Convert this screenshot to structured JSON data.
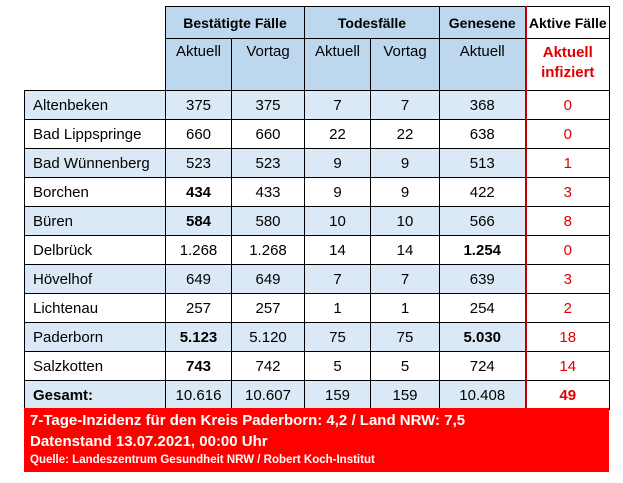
{
  "header": {
    "groups": [
      "Bestätigte Fälle",
      "Todesfälle",
      "Genesene",
      "Aktive Fälle"
    ],
    "sub": [
      "Aktuell",
      "Vortag",
      "Aktuell",
      "Vortag",
      "Aktuell",
      "Aktuell infiziert"
    ]
  },
  "rows": [
    {
      "name": "Altenbeken",
      "v": [
        "375",
        "375",
        "7",
        "7",
        "368",
        "0"
      ]
    },
    {
      "name": "Bad Lippspringe",
      "v": [
        "660",
        "660",
        "22",
        "22",
        "638",
        "0"
      ]
    },
    {
      "name": "Bad Wünnenberg",
      "v": [
        "523",
        "523",
        "9",
        "9",
        "513",
        "1"
      ]
    },
    {
      "name": "Borchen",
      "v": [
        "434",
        "433",
        "9",
        "9",
        "422",
        "3"
      ]
    },
    {
      "name": "Büren",
      "v": [
        "584",
        "580",
        "10",
        "10",
        "566",
        "8"
      ]
    },
    {
      "name": "Delbrück",
      "v": [
        "1.268",
        "1.268",
        "14",
        "14",
        "1.254",
        "0"
      ]
    },
    {
      "name": "Hövelhof",
      "v": [
        "649",
        "649",
        "7",
        "7",
        "639",
        "3"
      ]
    },
    {
      "name": "Lichtenau",
      "v": [
        "257",
        "257",
        "1",
        "1",
        "254",
        "2"
      ]
    },
    {
      "name": "Paderborn",
      "v": [
        "5.123",
        "5.120",
        "75",
        "75",
        "5.030",
        "18"
      ]
    },
    {
      "name": "Salzkotten",
      "v": [
        "743",
        "742",
        "5",
        "5",
        "724",
        "14"
      ]
    },
    {
      "name": "Gesamt:",
      "v": [
        "10.616",
        "10.607",
        "159",
        "159",
        "10.408",
        "49"
      ]
    }
  ],
  "footer": {
    "line1": "7-Tage-Inzidenz für den Kreis Paderborn: 4,2 / Land NRW: 7,5",
    "line2": "Datenstand 13.07.2021, 00:00 Uhr",
    "line3": "Quelle: Landeszentrum Gesundheit NRW / Robert Koch-Institut"
  },
  "colors": {
    "header_bg": "#bdd7ee",
    "row_shade": "#dbe9f6",
    "red": "#ff0000"
  }
}
